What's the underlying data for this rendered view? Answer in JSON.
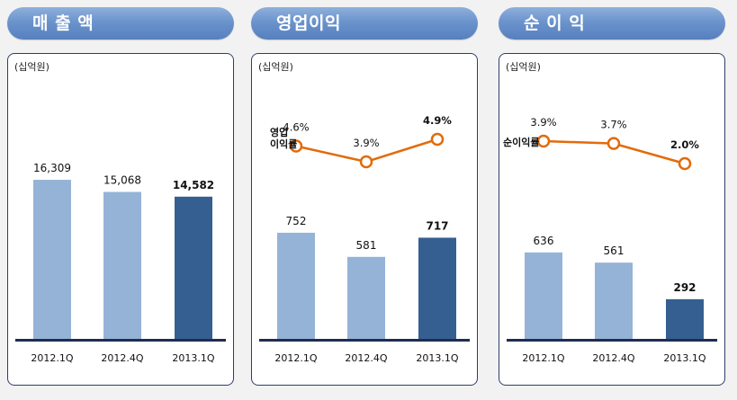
{
  "unit_label": "(십억원)",
  "chart_data": [
    {
      "type": "bar",
      "title": "매 출 액",
      "unit": "(십억원)",
      "categories": [
        "2012.1Q",
        "2012.4Q",
        "2013.1Q"
      ],
      "values": [
        16309,
        15068,
        14582
      ],
      "value_labels": [
        "16,309",
        "15,068",
        "14,582"
      ],
      "bar_colors": [
        "#95b3d7",
        "#95b3d7",
        "#365f91"
      ],
      "highlight_index": 2,
      "ylim": [
        0,
        20000
      ]
    },
    {
      "type": "bar",
      "title": "영업이익",
      "unit": "(십억원)",
      "categories": [
        "2012.1Q",
        "2012.4Q",
        "2013.1Q"
      ],
      "values": [
        752,
        581,
        717
      ],
      "value_labels": [
        "752",
        "581",
        "717"
      ],
      "bar_colors": [
        "#95b3d7",
        "#95b3d7",
        "#365f91"
      ],
      "highlight_index": 2,
      "ylim": [
        0,
        1000
      ],
      "margin_series": {
        "label_lines": [
          "영업",
          "이익률"
        ],
        "values": [
          4.6,
          3.9,
          4.9
        ],
        "value_labels": [
          "4.6%",
          "3.9%",
          "4.9%"
        ],
        "color": "#e26b0a"
      }
    },
    {
      "type": "bar",
      "title": "순 이 익",
      "unit": "(십억원)",
      "categories": [
        "2012.1Q",
        "2012.4Q",
        "2013.1Q"
      ],
      "values": [
        636,
        561,
        292
      ],
      "value_labels": [
        "636",
        "561",
        "292"
      ],
      "bar_colors": [
        "#95b3d7",
        "#95b3d7",
        "#365f91"
      ],
      "highlight_index": 2,
      "ylim": [
        0,
        840
      ],
      "margin_series": {
        "label_lines": [
          "순이익률"
        ],
        "values": [
          3.9,
          3.7,
          2.0
        ],
        "value_labels": [
          "3.9%",
          "3.7%",
          "2.0%"
        ],
        "color": "#e26b0a"
      }
    }
  ]
}
